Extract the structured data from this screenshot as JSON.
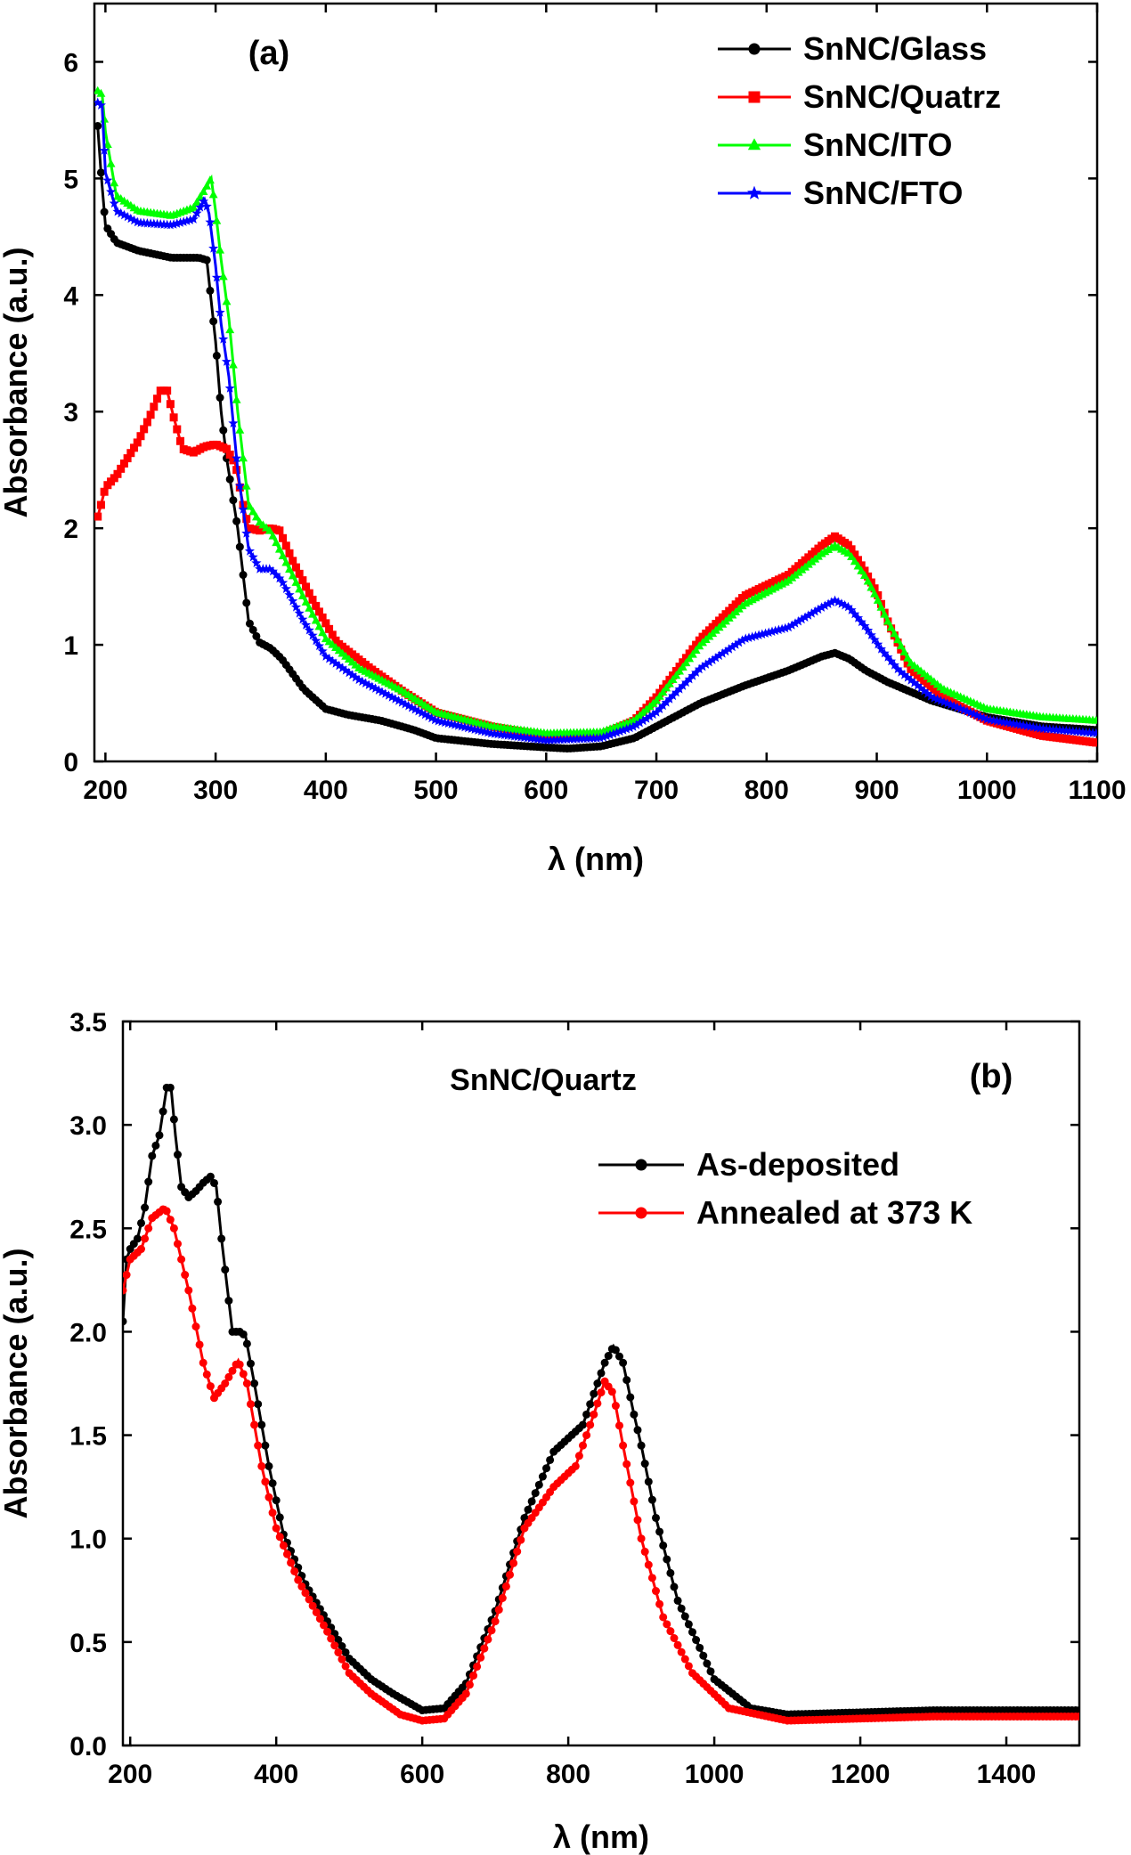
{
  "chart_data": [
    {
      "type": "line",
      "panel_label": "(a)",
      "xlabel": "λ  (nm)",
      "ylabel": "Absorbance (a.u.)",
      "xlim": [
        190,
        1100
      ],
      "ylim": [
        0,
        6.5
      ],
      "xticks": [
        200,
        300,
        400,
        500,
        600,
        700,
        800,
        900,
        1000,
        1100
      ],
      "yticks": [
        0,
        1,
        2,
        3,
        4,
        5,
        6
      ],
      "legend_position": "top-right",
      "grid": false,
      "series": [
        {
          "name": "SnNC/Glass",
          "color": "#000000",
          "marker": "circle",
          "points": [
            [
              193,
              5.45
            ],
            [
              196,
              5.05
            ],
            [
              200,
              4.6
            ],
            [
              210,
              4.45
            ],
            [
              230,
              4.38
            ],
            [
              260,
              4.32
            ],
            [
              285,
              4.32
            ],
            [
              292,
              4.3
            ],
            [
              300,
              3.6
            ],
            [
              305,
              3.0
            ],
            [
              310,
              2.6
            ],
            [
              320,
              2.0
            ],
            [
              330,
              1.2
            ],
            [
              340,
              1.02
            ],
            [
              350,
              0.97
            ],
            [
              360,
              0.88
            ],
            [
              370,
              0.75
            ],
            [
              380,
              0.62
            ],
            [
              400,
              0.45
            ],
            [
              420,
              0.4
            ],
            [
              450,
              0.35
            ],
            [
              480,
              0.27
            ],
            [
              500,
              0.2
            ],
            [
              550,
              0.15
            ],
            [
              600,
              0.12
            ],
            [
              620,
              0.11
            ],
            [
              650,
              0.13
            ],
            [
              680,
              0.2
            ],
            [
              700,
              0.3
            ],
            [
              740,
              0.5
            ],
            [
              780,
              0.65
            ],
            [
              820,
              0.78
            ],
            [
              850,
              0.9
            ],
            [
              862,
              0.93
            ],
            [
              875,
              0.88
            ],
            [
              890,
              0.78
            ],
            [
              910,
              0.68
            ],
            [
              950,
              0.52
            ],
            [
              1000,
              0.38
            ],
            [
              1050,
              0.3
            ],
            [
              1100,
              0.27
            ]
          ]
        },
        {
          "name": "SnNC/Quatrz",
          "color": "#ff0000",
          "marker": "square",
          "points": [
            [
              193,
              2.1
            ],
            [
              196,
              2.2
            ],
            [
              200,
              2.35
            ],
            [
              210,
              2.45
            ],
            [
              220,
              2.6
            ],
            [
              230,
              2.75
            ],
            [
              240,
              2.95
            ],
            [
              250,
              3.18
            ],
            [
              256,
              3.18
            ],
            [
              262,
              2.95
            ],
            [
              270,
              2.68
            ],
            [
              280,
              2.65
            ],
            [
              290,
              2.7
            ],
            [
              300,
              2.72
            ],
            [
              310,
              2.68
            ],
            [
              318,
              2.55
            ],
            [
              325,
              2.2
            ],
            [
              330,
              2.0
            ],
            [
              340,
              1.98
            ],
            [
              350,
              2.0
            ],
            [
              358,
              1.98
            ],
            [
              370,
              1.72
            ],
            [
              390,
              1.35
            ],
            [
              410,
              1.02
            ],
            [
              440,
              0.8
            ],
            [
              470,
              0.6
            ],
            [
              500,
              0.42
            ],
            [
              550,
              0.3
            ],
            [
              600,
              0.22
            ],
            [
              650,
              0.23
            ],
            [
              680,
              0.35
            ],
            [
              700,
              0.55
            ],
            [
              740,
              1.05
            ],
            [
              780,
              1.42
            ],
            [
              820,
              1.6
            ],
            [
              850,
              1.85
            ],
            [
              862,
              1.93
            ],
            [
              875,
              1.85
            ],
            [
              890,
              1.62
            ],
            [
              900,
              1.45
            ],
            [
              910,
              1.2
            ],
            [
              930,
              0.8
            ],
            [
              960,
              0.55
            ],
            [
              1000,
              0.35
            ],
            [
              1050,
              0.22
            ],
            [
              1100,
              0.16
            ]
          ]
        },
        {
          "name": "SnNC/ITO",
          "color": "#00ff00",
          "marker": "triangle",
          "points": [
            [
              193,
              5.75
            ],
            [
              197,
              5.72
            ],
            [
              200,
              5.4
            ],
            [
              210,
              4.85
            ],
            [
              230,
              4.72
            ],
            [
              260,
              4.68
            ],
            [
              280,
              4.75
            ],
            [
              290,
              4.9
            ],
            [
              296,
              5.0
            ],
            [
              300,
              4.72
            ],
            [
              305,
              4.3
            ],
            [
              312,
              3.8
            ],
            [
              320,
              3.0
            ],
            [
              330,
              2.2
            ],
            [
              340,
              2.05
            ],
            [
              350,
              1.97
            ],
            [
              360,
              1.78
            ],
            [
              380,
              1.4
            ],
            [
              400,
              1.05
            ],
            [
              430,
              0.8
            ],
            [
              470,
              0.6
            ],
            [
              500,
              0.42
            ],
            [
              550,
              0.3
            ],
            [
              600,
              0.24
            ],
            [
              650,
              0.25
            ],
            [
              680,
              0.35
            ],
            [
              700,
              0.52
            ],
            [
              740,
              1.0
            ],
            [
              780,
              1.35
            ],
            [
              820,
              1.55
            ],
            [
              850,
              1.78
            ],
            [
              862,
              1.85
            ],
            [
              875,
              1.78
            ],
            [
              890,
              1.58
            ],
            [
              900,
              1.4
            ],
            [
              910,
              1.2
            ],
            [
              930,
              0.85
            ],
            [
              960,
              0.62
            ],
            [
              1000,
              0.45
            ],
            [
              1050,
              0.38
            ],
            [
              1100,
              0.35
            ]
          ]
        },
        {
          "name": "SnNC/FTO",
          "color": "#0000ff",
          "marker": "star",
          "points": [
            [
              193,
              5.65
            ],
            [
              197,
              5.62
            ],
            [
              200,
              5.05
            ],
            [
              210,
              4.72
            ],
            [
              230,
              4.62
            ],
            [
              260,
              4.6
            ],
            [
              280,
              4.65
            ],
            [
              290,
              4.82
            ],
            [
              294,
              4.7
            ],
            [
              300,
              4.25
            ],
            [
              305,
              3.75
            ],
            [
              312,
              3.3
            ],
            [
              320,
              2.5
            ],
            [
              330,
              1.82
            ],
            [
              340,
              1.65
            ],
            [
              350,
              1.65
            ],
            [
              360,
              1.55
            ],
            [
              380,
              1.2
            ],
            [
              400,
              0.9
            ],
            [
              430,
              0.7
            ],
            [
              470,
              0.5
            ],
            [
              500,
              0.35
            ],
            [
              550,
              0.24
            ],
            [
              600,
              0.18
            ],
            [
              650,
              0.2
            ],
            [
              680,
              0.3
            ],
            [
              700,
              0.42
            ],
            [
              740,
              0.8
            ],
            [
              780,
              1.05
            ],
            [
              820,
              1.15
            ],
            [
              850,
              1.32
            ],
            [
              862,
              1.38
            ],
            [
              875,
              1.32
            ],
            [
              890,
              1.15
            ],
            [
              905,
              0.95
            ],
            [
              920,
              0.78
            ],
            [
              950,
              0.55
            ],
            [
              1000,
              0.36
            ],
            [
              1050,
              0.28
            ],
            [
              1100,
              0.24
            ]
          ]
        }
      ]
    },
    {
      "type": "line",
      "panel_label": "(b)",
      "title": "SnNC/Quartz",
      "xlabel": "λ  (nm)",
      "ylabel": "Absorbance (a.u.)",
      "xlim": [
        190,
        1500
      ],
      "ylim": [
        0,
        3.5
      ],
      "xticks": [
        200,
        400,
        600,
        800,
        1000,
        1200,
        1400
      ],
      "yticks": [
        0.0,
        0.5,
        1.0,
        1.5,
        2.0,
        2.5,
        3.0,
        3.5
      ],
      "legend_position": "top-right",
      "grid": false,
      "series": [
        {
          "name": "As-deposited",
          "color": "#000000",
          "marker": "circle",
          "points": [
            [
              190,
              2.05
            ],
            [
              195,
              2.35
            ],
            [
              200,
              2.4
            ],
            [
              210,
              2.45
            ],
            [
              220,
              2.6
            ],
            [
              230,
              2.85
            ],
            [
              240,
              2.95
            ],
            [
              250,
              3.18
            ],
            [
              256,
              3.18
            ],
            [
              262,
              2.95
            ],
            [
              270,
              2.7
            ],
            [
              280,
              2.65
            ],
            [
              290,
              2.68
            ],
            [
              300,
              2.72
            ],
            [
              310,
              2.75
            ],
            [
              318,
              2.7
            ],
            [
              325,
              2.45
            ],
            [
              330,
              2.3
            ],
            [
              340,
              2.0
            ],
            [
              350,
              2.0
            ],
            [
              358,
              1.98
            ],
            [
              370,
              1.75
            ],
            [
              390,
              1.35
            ],
            [
              410,
              1.02
            ],
            [
              440,
              0.78
            ],
            [
              470,
              0.6
            ],
            [
              500,
              0.42
            ],
            [
              530,
              0.32
            ],
            [
              560,
              0.25
            ],
            [
              600,
              0.17
            ],
            [
              630,
              0.18
            ],
            [
              660,
              0.3
            ],
            [
              700,
              0.65
            ],
            [
              740,
              1.1
            ],
            [
              780,
              1.42
            ],
            [
              820,
              1.55
            ],
            [
              850,
              1.85
            ],
            [
              862,
              1.93
            ],
            [
              875,
              1.85
            ],
            [
              890,
              1.6
            ],
            [
              900,
              1.45
            ],
            [
              920,
              1.1
            ],
            [
              950,
              0.7
            ],
            [
              1000,
              0.32
            ],
            [
              1050,
              0.18
            ],
            [
              1100,
              0.15
            ],
            [
              1200,
              0.16
            ],
            [
              1300,
              0.17
            ],
            [
              1400,
              0.17
            ],
            [
              1500,
              0.17
            ]
          ]
        },
        {
          "name": "Annealed at 373 K",
          "color": "#ff0000",
          "marker": "circle",
          "points": [
            [
              190,
              2.2
            ],
            [
              200,
              2.35
            ],
            [
              215,
              2.4
            ],
            [
              230,
              2.55
            ],
            [
              248,
              2.6
            ],
            [
              260,
              2.5
            ],
            [
              280,
              2.2
            ],
            [
              300,
              1.85
            ],
            [
              315,
              1.68
            ],
            [
              330,
              1.75
            ],
            [
              348,
              1.86
            ],
            [
              360,
              1.75
            ],
            [
              380,
              1.35
            ],
            [
              400,
              1.05
            ],
            [
              430,
              0.8
            ],
            [
              470,
              0.55
            ],
            [
              500,
              0.35
            ],
            [
              530,
              0.25
            ],
            [
              570,
              0.15
            ],
            [
              600,
              0.12
            ],
            [
              630,
              0.13
            ],
            [
              660,
              0.25
            ],
            [
              700,
              0.6
            ],
            [
              740,
              1.05
            ],
            [
              780,
              1.25
            ],
            [
              810,
              1.35
            ],
            [
              835,
              1.6
            ],
            [
              850,
              1.76
            ],
            [
              862,
              1.7
            ],
            [
              875,
              1.45
            ],
            [
              900,
              1.0
            ],
            [
              930,
              0.62
            ],
            [
              970,
              0.35
            ],
            [
              1020,
              0.18
            ],
            [
              1100,
              0.12
            ],
            [
              1200,
              0.13
            ],
            [
              1300,
              0.14
            ],
            [
              1400,
              0.14
            ],
            [
              1500,
              0.14
            ]
          ]
        }
      ]
    }
  ]
}
